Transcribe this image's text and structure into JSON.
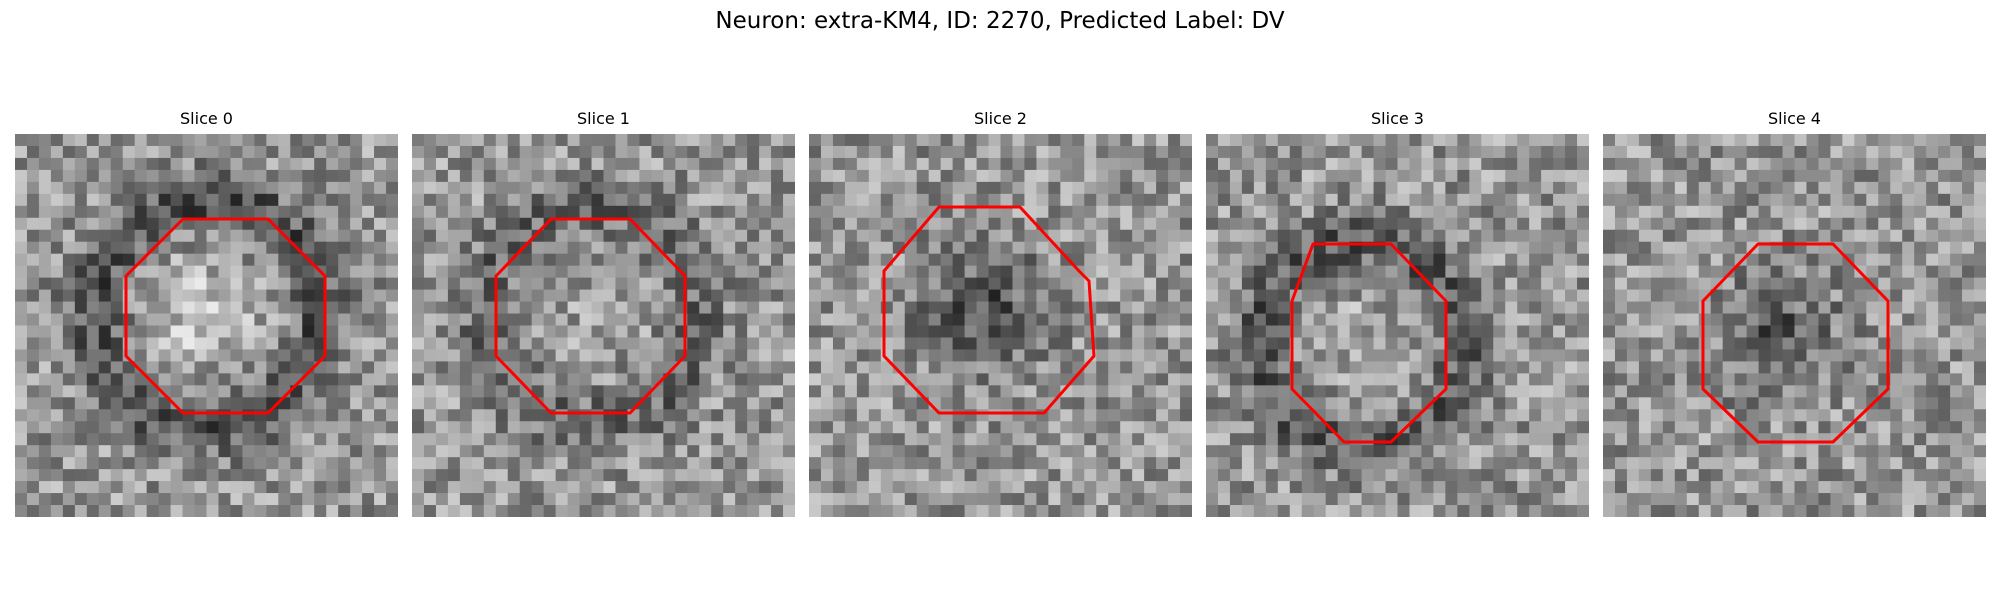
{
  "figure": {
    "title": "Neuron: extra-KM4, ID: 2270, Predicted Label: DV"
  },
  "contour_color": "#ff0000",
  "panels": [
    {
      "title": "Slice 0"
    },
    {
      "title": "Slice 1"
    },
    {
      "title": "Slice 2"
    },
    {
      "title": "Slice 3"
    },
    {
      "title": "Slice 4"
    }
  ]
}
